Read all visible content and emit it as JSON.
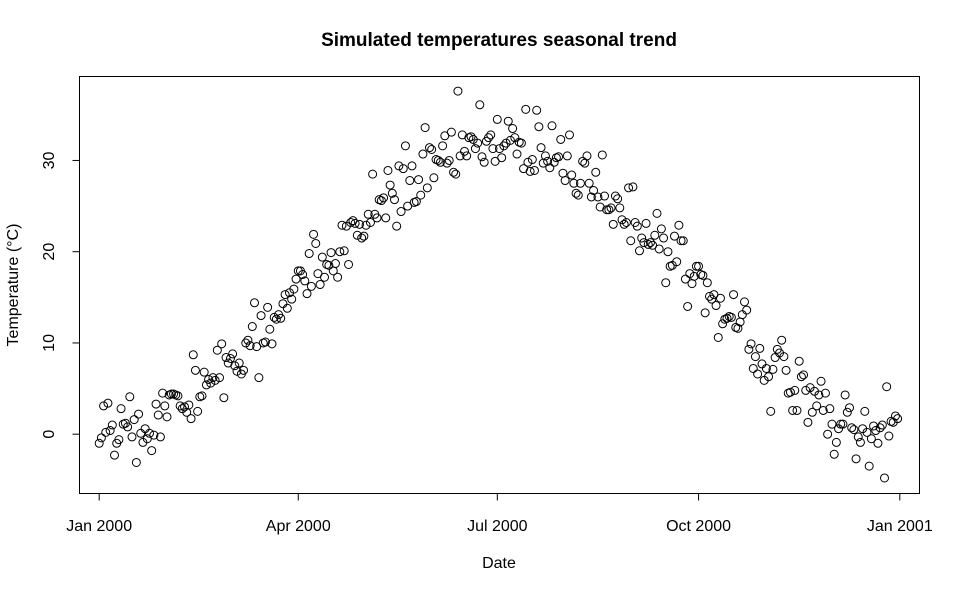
{
  "chart_data": {
    "type": "scatter",
    "title": "Simulated temperatures seasonal trend",
    "xlabel": "Date",
    "ylabel": "Temperature (°C)",
    "xlim": [
      "1999-12-23",
      "2001-01-10"
    ],
    "ylim": [
      -6.5,
      39.2
    ],
    "x_ticks": [
      {
        "date": "2000-01-01",
        "label": "Jan 2000"
      },
      {
        "date": "2000-04-01",
        "label": "Apr 2000"
      },
      {
        "date": "2000-07-01",
        "label": "Jul 2000"
      },
      {
        "date": "2000-10-01",
        "label": "Oct 2000"
      },
      {
        "date": "2001-01-01",
        "label": "Jan 2001"
      }
    ],
    "y_ticks": [
      0,
      10,
      20,
      30
    ],
    "grid": false,
    "legend": "none",
    "marker": "open-circle",
    "series": [
      {
        "x_start": "2000-01-01",
        "x_step_days": 1,
        "values": [
          -1.0,
          -0.4,
          3.1,
          0.2,
          3.4,
          0.4,
          1.0,
          -2.3,
          -1.0,
          -0.6,
          2.8,
          1.1,
          1.2,
          0.8,
          4.1,
          -0.3,
          1.6,
          -3.1,
          2.2,
          0.1,
          -0.9,
          0.6,
          -0.5,
          0.1,
          -1.8,
          -0.1,
          3.3,
          2.1,
          -0.3,
          4.5,
          3.1,
          1.9,
          4.3,
          4.4,
          4.4,
          4.3,
          4.2,
          3.1,
          2.8,
          3.0,
          2.4,
          3.2,
          1.7,
          8.7,
          7.0,
          2.5,
          4.1,
          4.2,
          6.8,
          5.4,
          6.0,
          5.6,
          6.2,
          5.9,
          9.2,
          6.2,
          9.9,
          4.0,
          8.4,
          7.8,
          8.3,
          8.8,
          7.5,
          6.9,
          7.8,
          6.6,
          7.0,
          10.0,
          10.3,
          9.7,
          11.8,
          14.4,
          9.6,
          6.2,
          13.0,
          10.0,
          10.1,
          13.9,
          11.5,
          9.9,
          12.8,
          12.6,
          13.1,
          12.7,
          14.3,
          15.3,
          13.8,
          15.5,
          14.8,
          15.9,
          17.0,
          17.9,
          17.9,
          17.5,
          16.8,
          15.4,
          19.8,
          16.2,
          21.9,
          20.9,
          17.6,
          16.4,
          19.4,
          17.2,
          18.6,
          18.5,
          19.9,
          17.9,
          18.7,
          17.2,
          20.0,
          22.9,
          20.1,
          22.8,
          18.6,
          23.2,
          23.4,
          23.1,
          21.8,
          23.0,
          21.5,
          21.7,
          22.9,
          24.1,
          23.2,
          28.5,
          24.1,
          23.7,
          25.7,
          25.6,
          25.9,
          23.7,
          28.9,
          27.3,
          26.4,
          25.7,
          22.8,
          29.4,
          24.4,
          29.1,
          31.6,
          25.0,
          27.8,
          29.4,
          25.4,
          25.5,
          27.9,
          26.2,
          30.7,
          33.6,
          27.0,
          31.4,
          31.2,
          28.1,
          30.1,
          30.0,
          29.8,
          31.6,
          32.7,
          29.7,
          30.0,
          33.1,
          28.7,
          28.5,
          37.6,
          30.5,
          32.8,
          31.0,
          30.5,
          32.5,
          32.6,
          32.3,
          31.3,
          31.9,
          36.1,
          30.4,
          29.8,
          32.1,
          32.5,
          32.8,
          31.3,
          29.9,
          34.5,
          31.3,
          30.3,
          31.6,
          31.9,
          34.3,
          32.2,
          33.5,
          32.5,
          30.7,
          32.0,
          31.9,
          29.1,
          35.6,
          29.8,
          28.8,
          30.1,
          28.9,
          35.5,
          33.7,
          31.4,
          29.7,
          30.5,
          29.9,
          29.2,
          33.8,
          29.8,
          30.3,
          30.4,
          32.3,
          28.6,
          27.8,
          30.5,
          32.8,
          28.4,
          27.5,
          26.4,
          26.2,
          27.5,
          29.9,
          29.7,
          30.5,
          27.5,
          26.0,
          26.7,
          28.7,
          26.0,
          24.9,
          30.6,
          26.1,
          24.6,
          24.6,
          24.8,
          23.0,
          26.1,
          25.8,
          24.8,
          23.5,
          23.0,
          23.2,
          27.0,
          21.2,
          27.1,
          23.2,
          22.8,
          20.1,
          21.5,
          21.0,
          23.1,
          20.8,
          21.0,
          20.7,
          21.8,
          24.2,
          20.3,
          22.5,
          21.5,
          16.6,
          20.0,
          18.4,
          18.5,
          21.7,
          18.9,
          22.9,
          21.2,
          21.2,
          17.0,
          14.0,
          17.6,
          16.5,
          17.3,
          18.4,
          18.4,
          17.5,
          17.4,
          13.3,
          16.6,
          15.1,
          14.8,
          15.3,
          14.1,
          10.6,
          14.9,
          12.1,
          12.6,
          12.7,
          12.9,
          12.8,
          15.3,
          11.7,
          11.6,
          12.3,
          13.1,
          14.5,
          13.6,
          9.3,
          9.9,
          7.2,
          8.5,
          6.6,
          9.4,
          7.7,
          5.9,
          7.2,
          6.3,
          2.5,
          7.1,
          8.4,
          9.3,
          8.9,
          10.3,
          8.5,
          7.0,
          4.5,
          4.6,
          2.6,
          4.8,
          2.6,
          8.0,
          6.3,
          6.5,
          4.8,
          1.3,
          5.1,
          2.4,
          4.7,
          3.1,
          4.3,
          5.8,
          2.6,
          4.5,
          0.0,
          2.8,
          1.1,
          -2.2,
          -0.9,
          0.6,
          1.1,
          1.1,
          4.3,
          2.4,
          2.9,
          0.7,
          0.5,
          -2.7,
          -0.3,
          -0.9,
          0.6,
          2.5,
          0.2,
          -3.5,
          -0.5,
          0.9,
          0.4,
          -1.0,
          0.7,
          1.0,
          -4.8,
          5.2,
          -0.2,
          1.4,
          1.3,
          2.0,
          1.7
        ]
      }
    ]
  }
}
